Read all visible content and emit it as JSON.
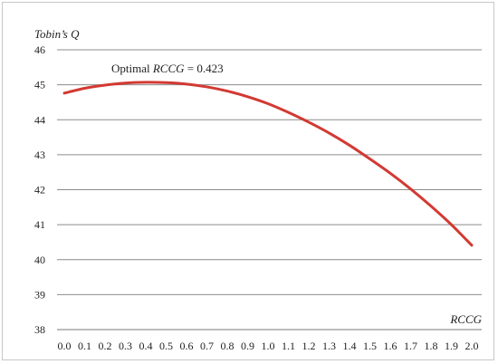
{
  "chart_data": {
    "type": "line",
    "ylabel": "Tobin’s Q",
    "xlabel": "RCCG",
    "ylim": [
      38,
      46
    ],
    "xlim": [
      0.0,
      2.0
    ],
    "y_ticks": [
      "38",
      "39",
      "40",
      "41",
      "42",
      "43",
      "44",
      "45",
      "46"
    ],
    "x_ticks": [
      "0.0",
      "0.1",
      "0.2",
      "0.3",
      "0.4",
      "0.5",
      "0.6",
      "0.7",
      "0.8",
      "0.9",
      "1.0",
      "1.1",
      "1.2",
      "1.3",
      "1.4",
      "1.5",
      "1.6",
      "1.7",
      "1.8",
      "1.9",
      "2.0"
    ],
    "grid": "horizontal",
    "series": [
      {
        "color": "#d23a33",
        "x": [
          0.0,
          0.1,
          0.2,
          0.3,
          0.4,
          0.5,
          0.6,
          0.7,
          0.8,
          0.9,
          1.0,
          1.1,
          1.2,
          1.3,
          1.4,
          1.5,
          1.6,
          1.7,
          1.8,
          1.9,
          2.0
        ],
        "y": [
          44.76,
          44.9,
          44.99,
          45.05,
          45.07,
          45.06,
          45.02,
          44.94,
          44.82,
          44.66,
          44.46,
          44.21,
          43.93,
          43.62,
          43.27,
          42.88,
          42.47,
          42.02,
          41.53,
          41.0,
          40.41
        ]
      }
    ],
    "annotation": {
      "prefix": "Optimal ",
      "italic": "RCCG",
      "suffix": " = 0.423"
    }
  }
}
